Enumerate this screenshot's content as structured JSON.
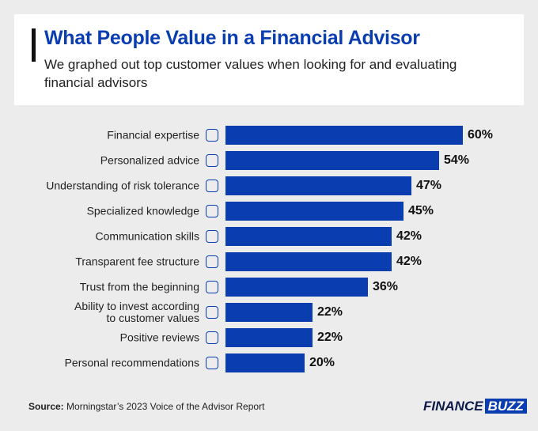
{
  "chart_data": {
    "type": "bar",
    "orientation": "horizontal",
    "title": "What People Value in a Financial Advisor",
    "subtitle": "We graphed out top customer values when looking for and evaluating financial advisors",
    "categories": [
      "Financial expertise",
      "Personalized advice",
      "Understanding of risk tolerance",
      "Specialized knowledge",
      "Communication skills",
      "Transparent fee structure",
      "Trust from the beginning",
      "Ability to invest according\nto customer values",
      "Positive reviews",
      "Personal recommendations"
    ],
    "values": [
      60,
      54,
      47,
      45,
      42,
      42,
      36,
      22,
      22,
      20
    ],
    "value_labels": [
      "60%",
      "54%",
      "47%",
      "45%",
      "42%",
      "42%",
      "36%",
      "22%",
      "22%",
      "20%"
    ],
    "color": "#0a3eb0",
    "source_label": "Source:",
    "source": "Morningstar’s 2023 Voice of the Advisor Report",
    "logo": {
      "part1": "FINANCE",
      "part2": "BUZZ"
    }
  }
}
